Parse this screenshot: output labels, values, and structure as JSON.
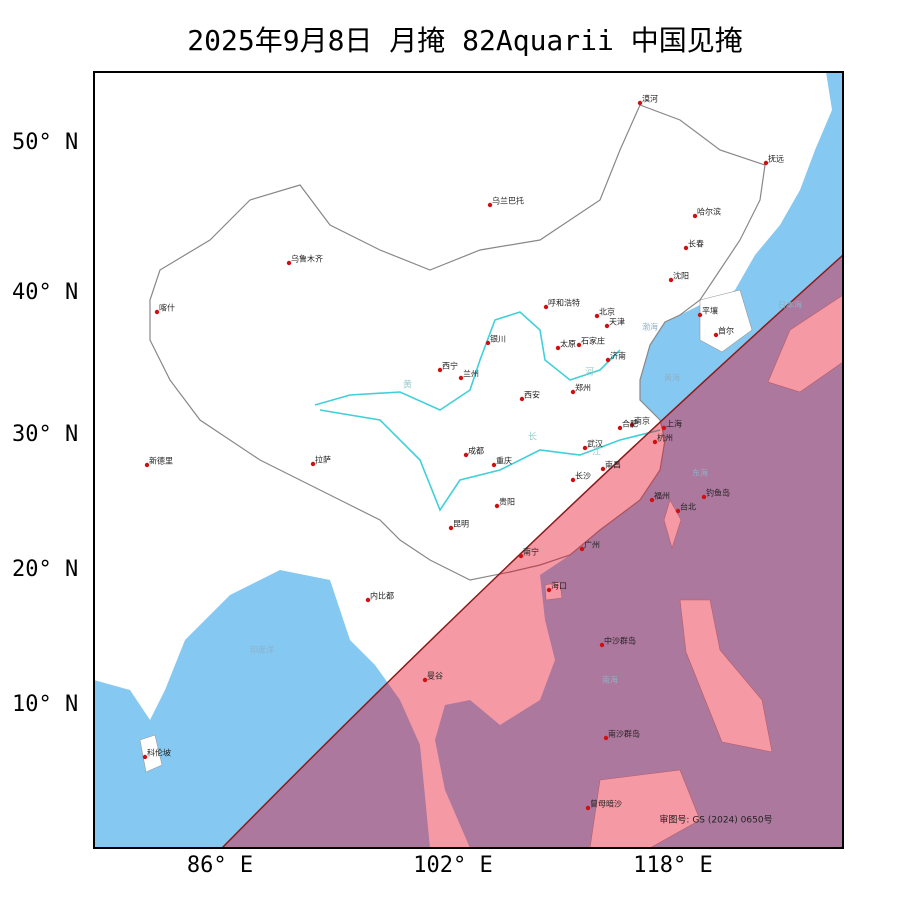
{
  "title": "2025年9月8日 月掩 82Aquarii 中国见掩",
  "lat_labels": [
    "50° N",
    "40° N",
    "30° N",
    "20° N",
    "10° N"
  ],
  "lon_labels": [
    "86° E",
    "102° E",
    "118° E"
  ],
  "cities": [
    "漠河",
    "抚远",
    "乌兰巴托",
    "哈尔滨",
    "长春",
    "乌鲁木齐",
    "沈阳",
    "喀什",
    "呼和浩特",
    "北京",
    "天津",
    "平壤",
    "首尔",
    "银川",
    "太原",
    "石家庄",
    "西宁",
    "兰州",
    "济南",
    "郑州",
    "西安",
    "南京",
    "合肥",
    "上海",
    "武汉",
    "杭州",
    "成都",
    "拉萨",
    "新德里",
    "重庆",
    "长沙",
    "南昌",
    "福州",
    "钓鱼岛",
    "台北",
    "贵阳",
    "昆明",
    "南宁",
    "广州",
    "海口",
    "内比都",
    "中沙群岛",
    "曼谷",
    "南沙群岛",
    "科伦坡",
    "曾母暗沙"
  ],
  "seas": [
    "日本海",
    "渤海",
    "黄海",
    "东海",
    "南海",
    "印度洋"
  ],
  "rivers": [
    "黄",
    "河",
    "长",
    "江"
  ],
  "approval": "审图号: GS (2024) 0650号"
}
